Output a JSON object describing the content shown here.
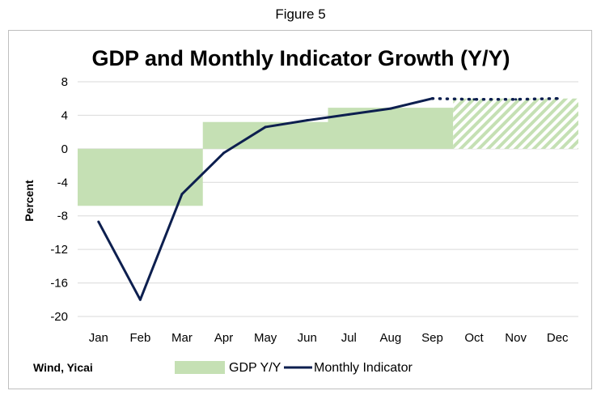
{
  "figure_label": "Figure 5",
  "source": "Wind, Yicai",
  "colors": {
    "gdp_fill": "#c5e0b4",
    "indicator_line": "#0d1f4f",
    "grid": "#d9d9d9"
  },
  "chart_data": {
    "type": "bar",
    "title": "GDP and Monthly Indicator Growth (Y/Y)",
    "xlabel": "",
    "ylabel": "Percent",
    "ylim": [
      -20,
      8
    ],
    "yticks": [
      8,
      4,
      0,
      -4,
      -8,
      -12,
      -16,
      -20
    ],
    "categories": [
      "Jan",
      "Feb",
      "Mar",
      "Apr",
      "May",
      "Jun",
      "Jul",
      "Aug",
      "Sep",
      "Oct",
      "Nov",
      "Dec"
    ],
    "grid": true,
    "legend_position": "bottom",
    "series": [
      {
        "name": "GDP Y/Y",
        "kind": "quarterly-area",
        "quarters": [
          {
            "months": [
              "Jan",
              "Mar"
            ],
            "value": -6.8,
            "forecast": false
          },
          {
            "months": [
              "Apr",
              "Jun"
            ],
            "value": 3.2,
            "forecast": false
          },
          {
            "months": [
              "Jul",
              "Sep"
            ],
            "value": 4.9,
            "forecast": false
          },
          {
            "months": [
              "Oct",
              "Dec"
            ],
            "value": 6.0,
            "forecast": true
          }
        ]
      },
      {
        "name": "Monthly Indicator",
        "kind": "line",
        "values": [
          -8.7,
          -18.0,
          -5.4,
          -0.5,
          2.6,
          3.4,
          4.1,
          4.8,
          6.0,
          5.9,
          5.9,
          6.0
        ],
        "forecast_from_index": 8
      }
    ]
  }
}
